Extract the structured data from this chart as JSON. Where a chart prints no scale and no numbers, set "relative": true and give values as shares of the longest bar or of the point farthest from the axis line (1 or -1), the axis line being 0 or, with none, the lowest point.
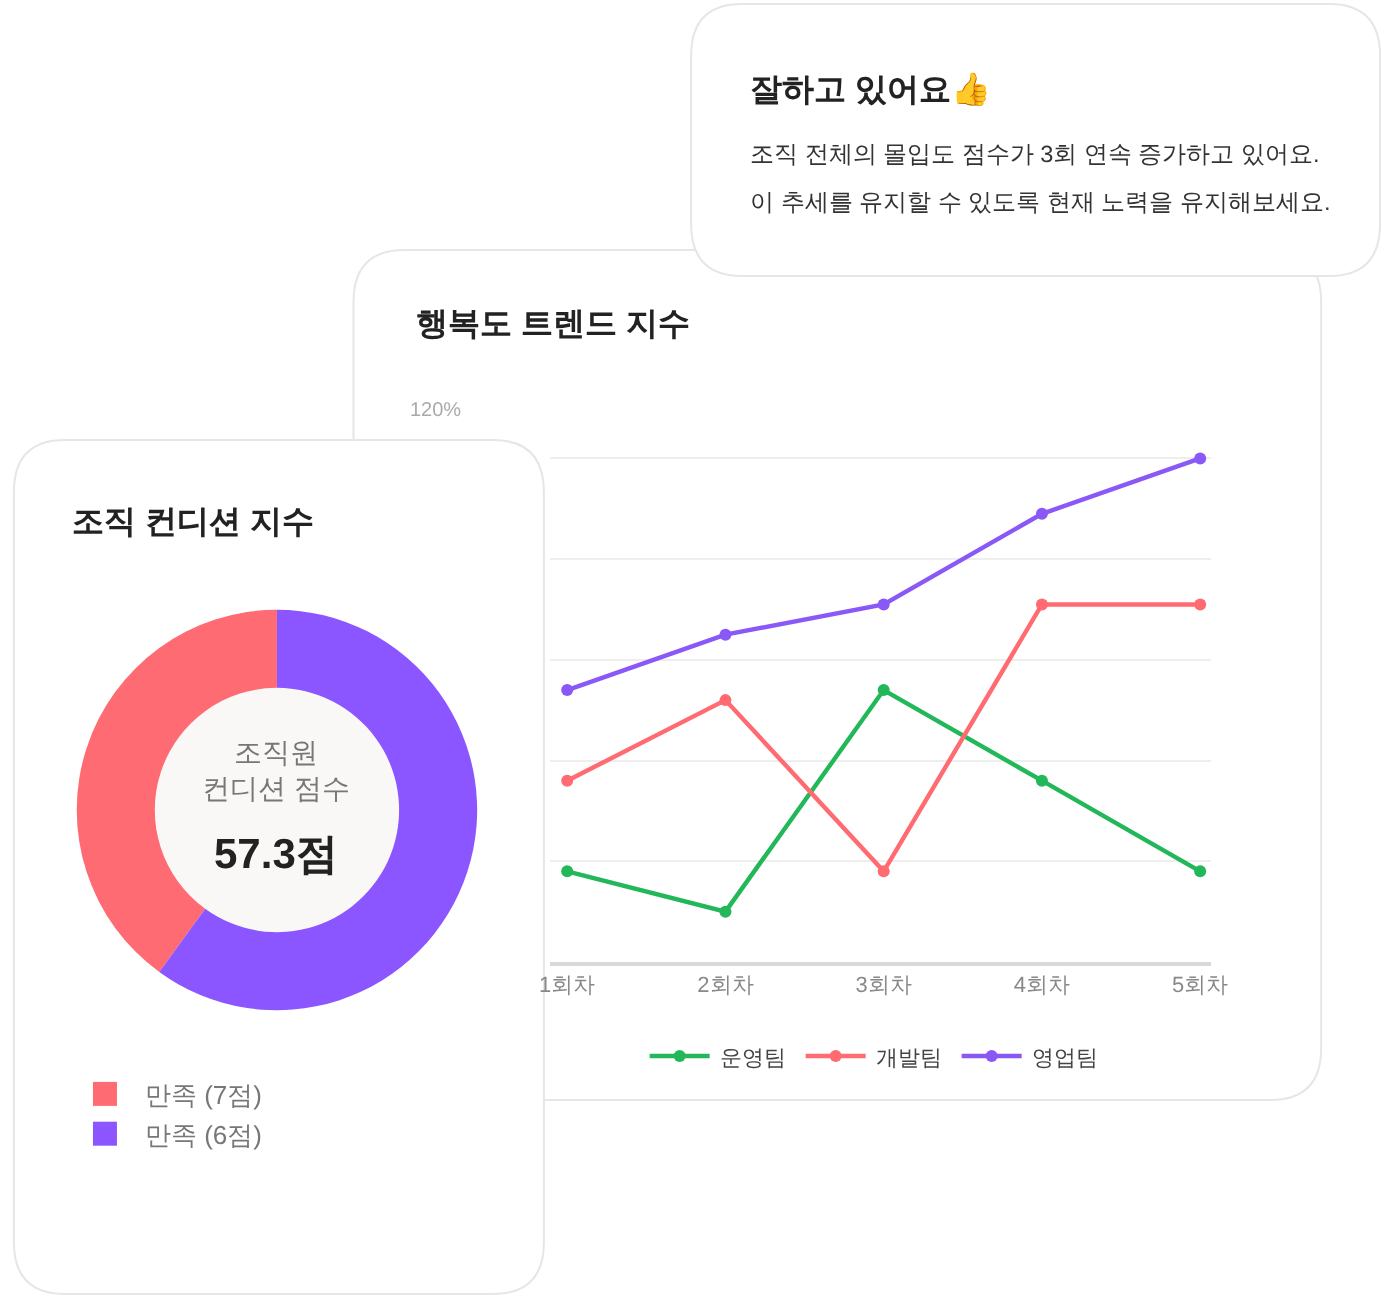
{
  "chart_data": [
    {
      "type": "other",
      "title": "잘하고 있어요👍",
      "annotations": [
        "조직 전체의 몰입도 점수가 3회 연속 증가하고 있어요.\n이 추세를 유지할 수 있도록 현재 노력을 유지해보세요."
      ]
    },
    {
      "type": "line",
      "title": "행복도 트렌드 지수",
      "categories": [
        "1회차",
        "2회차",
        "3회차",
        "4회차",
        "5회차"
      ],
      "relative": true,
      "series": [
        {
          "name": "운영팀",
          "color": "#22b85a",
          "values": [
            0.18,
            0.1,
            0.54,
            0.36,
            0.18
          ]
        },
        {
          "name": "개발팀",
          "color": "#ff6b70",
          "values": [
            0.36,
            0.52,
            0.18,
            0.71,
            0.71
          ]
        },
        {
          "name": "영업팀",
          "color": "#8a58f7",
          "values": [
            0.54,
            0.65,
            0.71,
            0.89,
            1
          ]
        }
      ],
      "annotations": [
        "120%"
      ],
      "grid": "y",
      "legend": "bottom",
      "marker": "circle",
      "line_style": "solid"
    },
    {
      "type": "donut",
      "title": "조직 컨디션 지수",
      "categories": [
        "만족 (7점)",
        "만족 (6점)"
      ],
      "values": [
        40,
        60
      ],
      "colors": [
        "#ff6b73",
        "#8b56ff"
      ],
      "annotations": [
        "조직원\n컨디션 점수",
        "57.3점"
      ],
      "legend": "bottom"
    }
  ]
}
